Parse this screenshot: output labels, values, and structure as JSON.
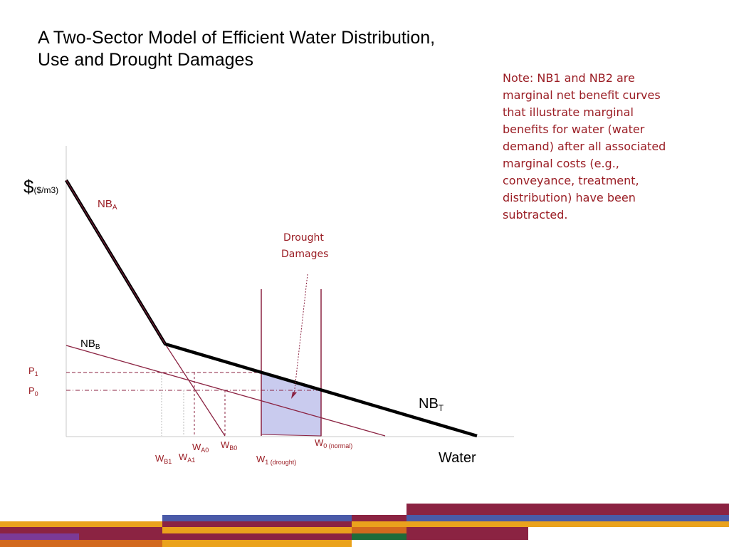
{
  "title": {
    "line1": "A Two-Sector Model of Efficient Water Distribution,",
    "line2": "Use and Drought Damages"
  },
  "note": "Note: NB1 and NB2 are marginal net benefit curves that illustrate marginal benefits for water (water demand) after all associated marginal costs (e.g., conveyance, treatment, distribution) have been subtracted.",
  "axes": {
    "y_symbol": "$",
    "y_unit": "($/m3)",
    "x_label": "Water"
  },
  "curves": {
    "nba": {
      "base": "NB",
      "sub": "A"
    },
    "nbb": {
      "base": "NB",
      "sub": "B"
    },
    "nbt": {
      "base": "NB",
      "sub": "T"
    }
  },
  "prices": {
    "p1": {
      "base": "P",
      "sub": "1"
    },
    "p0": {
      "base": "P",
      "sub": "0"
    }
  },
  "quantities": {
    "wa0": {
      "base": "W",
      "sub": "A0"
    },
    "wb0": {
      "base": "W",
      "sub": "B0"
    },
    "wb1": {
      "base": "W",
      "sub": "B1"
    },
    "wa1": {
      "base": "W",
      "sub": "A1"
    },
    "w0": {
      "base": "W",
      "sub": "0 (normal)"
    },
    "w1": {
      "base": "W",
      "sub": "1 (drought)"
    }
  },
  "drought": {
    "line1": "Drought",
    "line2": "Damages"
  },
  "colors": {
    "maroon": "#8b2342",
    "red_text": "#9a1d24",
    "shade": "#c9cbee",
    "bar_blue": "#4a5aa8",
    "bar_gold": "#eaa21c",
    "bar_purple": "#7b3a96",
    "bar_orange": "#d2691e",
    "bar_green": "#1f6b3a"
  }
}
